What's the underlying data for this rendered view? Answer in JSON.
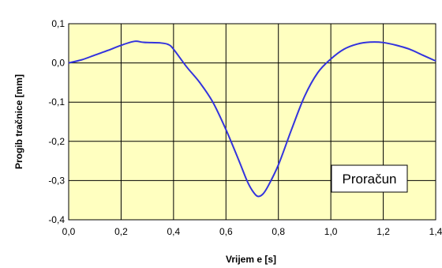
{
  "chart_data": {
    "type": "line",
    "title": "",
    "xlabel": "Vrijem e [s]",
    "ylabel": "Progib tračnice  [mm]",
    "xlim": [
      0,
      1.4
    ],
    "ylim": [
      -0.4,
      0.1
    ],
    "x_ticks": [
      0.0,
      0.2,
      0.4,
      0.6,
      0.8,
      1.0,
      1.2,
      1.4
    ],
    "y_ticks": [
      0.1,
      0.0,
      -0.1,
      -0.2,
      -0.3,
      -0.4
    ],
    "x_tick_labels": [
      "0,0",
      "0,2",
      "0,4",
      "0,6",
      "0,8",
      "1,0",
      "1,2",
      "1,4"
    ],
    "y_tick_labels": [
      "0,1",
      "0,0",
      "-0,1",
      "-0,2",
      "-0,3",
      "-0,4"
    ],
    "grid": true,
    "colors": {
      "plot_background": "#ffffc0",
      "line": "#3333dd",
      "grid": "#000000"
    },
    "annotation": {
      "text": "Proračun"
    },
    "series": [
      {
        "x": [
          0.0,
          0.05,
          0.1,
          0.15,
          0.2,
          0.25,
          0.28,
          0.3,
          0.35,
          0.38,
          0.4,
          0.45,
          0.5,
          0.55,
          0.6,
          0.65,
          0.68,
          0.7,
          0.72,
          0.74,
          0.76,
          0.8,
          0.85,
          0.9,
          0.95,
          1.0,
          1.05,
          1.1,
          1.15,
          1.2,
          1.25,
          1.3,
          1.35,
          1.4
        ],
        "y": [
          0.0,
          0.008,
          0.02,
          0.032,
          0.045,
          0.055,
          0.053,
          0.052,
          0.051,
          0.047,
          0.035,
          -0.01,
          -0.05,
          -0.1,
          -0.17,
          -0.25,
          -0.3,
          -0.325,
          -0.34,
          -0.335,
          -0.315,
          -0.26,
          -0.17,
          -0.085,
          -0.025,
          0.01,
          0.035,
          0.048,
          0.053,
          0.052,
          0.045,
          0.035,
          0.02,
          0.005
        ]
      }
    ]
  }
}
